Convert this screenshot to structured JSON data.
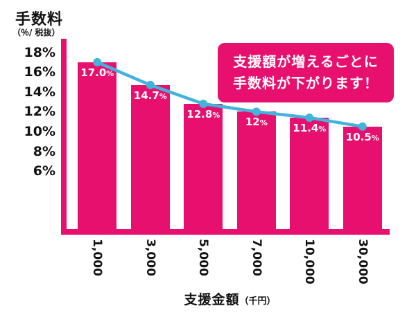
{
  "title": {
    "main": "手数料",
    "sub": "（％/ 税抜）"
  },
  "annotation": {
    "line1": "支援額が増えるごとに",
    "line2": "手数料が下がります！"
  },
  "x_axis": {
    "main": "支援金額",
    "unit": "（千円）"
  },
  "colors": {
    "bar": "#e8106e",
    "line": "#43b3dc",
    "label_text": "#ffffff",
    "text": "#111111"
  },
  "chart_data": {
    "type": "bar",
    "title": "手数料（％/税抜）",
    "xlabel": "支援金額（千円）",
    "ylabel": "手数料（％/税抜）",
    "categories": [
      "1,000",
      "3,000",
      "5,000",
      "7,000",
      "10,000",
      "30,000"
    ],
    "values": [
      17.0,
      14.7,
      12.8,
      12.0,
      11.4,
      10.5
    ],
    "value_labels": [
      "17.0%",
      "14.7%",
      "12.8%",
      "12%",
      "11.4%",
      "10.5%"
    ],
    "series": [
      {
        "name": "手数料",
        "values": [
          17.0,
          14.7,
          12.8,
          12.0,
          11.4,
          10.5
        ]
      }
    ],
    "overlay_line": true,
    "legend": false,
    "grid": false,
    "ylim": [
      0,
      19
    ],
    "yticks": [
      {
        "label": "18%",
        "value": 18
      },
      {
        "label": "16%",
        "value": 16
      },
      {
        "label": "14%",
        "value": 14
      },
      {
        "label": "12%",
        "value": 12
      },
      {
        "label": "10%",
        "value": 10
      },
      {
        "label": "8%",
        "value": 8
      },
      {
        "label": "6%",
        "value": 6
      }
    ]
  }
}
